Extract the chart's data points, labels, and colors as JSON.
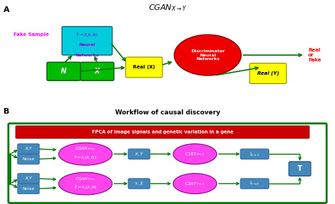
{
  "title_A_text": "CGAN",
  "title_B": "Workflow of causal discovery",
  "fake_sample": "Fake Sample",
  "fpca_label": "FPCA of image signals and genetic variation in a gene",
  "real_or_fake": "Real\nor\nFake",
  "nn_line1": "$\\hat{Y}=f(X,N)$",
  "nn_line2": "Neural",
  "nn_line3": "Networks",
  "discriminator": "Discriminator\nNeural\nNetworks",
  "real_x": "Real (X)",
  "real_y": "Real (Y)",
  "bg_color": "#ffffff",
  "dgreen": "#007700",
  "cyan_fc": "#00ccdd",
  "green_fc": "#00bb00",
  "yellow_fc": "#ffff00",
  "red_fc": "#ee0000",
  "magenta_fc": "#ff44ee",
  "blue_fc": "#4488bb",
  "red_bar": "#cc0000",
  "magenta_text": "#ff00ff",
  "purple_text": "#9900cc",
  "white": "#ffffff",
  "red_text": "#ff0000"
}
